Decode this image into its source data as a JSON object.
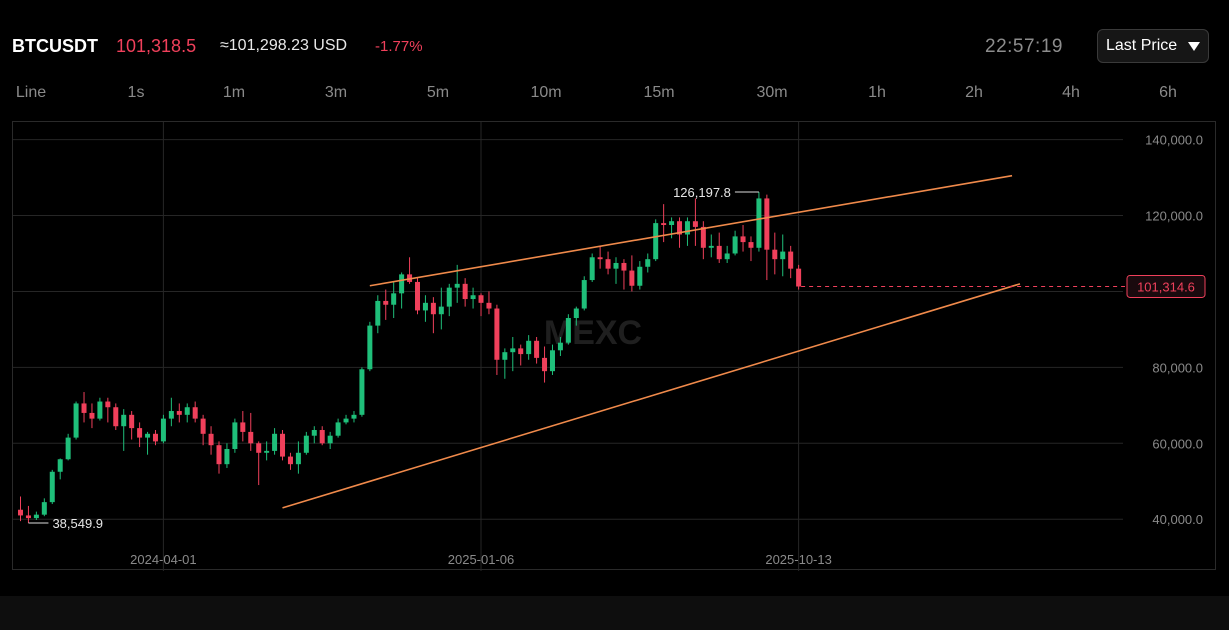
{
  "header": {
    "symbol": "BTCUSDT",
    "price": "101,318.5",
    "usd": "≈101,298.23 USD",
    "change": "-1.77%",
    "time": "22:57:19",
    "price_type": "Last Price"
  },
  "intervals": [
    "Line",
    "1s",
    "1m",
    "3m",
    "5m",
    "10m",
    "15m",
    "30m",
    "1h",
    "2h",
    "4h",
    "6h"
  ],
  "watermark": "MEXC",
  "colors": {
    "up": "#1fbf7a",
    "down": "#f0405b",
    "trendline": "#f08a4b",
    "grid": "#262626"
  },
  "chart_data": {
    "type": "candlestick",
    "x_labels": [
      "2024-04-01",
      "2025-01-06",
      "2025-10-13"
    ],
    "y_ticks": [
      "140,000.0",
      "120,000.0",
      "80,000.0",
      "60,000.0",
      "40,000.0"
    ],
    "y_tick_values": [
      140000,
      120000,
      80000,
      60000,
      40000
    ],
    "ylim": [
      34000,
      142000
    ],
    "x_range_weeks": [
      0,
      151
    ],
    "x_label_weeks": [
      10,
      50,
      90
    ],
    "high_label": "126,197.8",
    "low_label": "38,549.9",
    "current_label": "101,314.6",
    "current_value": 101314.6,
    "trendlines": [
      {
        "name": "",
        "from": [
          36,
          101500
        ],
        "to": [
          99,
          130500
        ]
      },
      {
        "name": "",
        "from": [
          25,
          43000
        ],
        "to": [
          100,
          102000
        ]
      }
    ],
    "candles": [
      [
        42500,
        46000,
        39500,
        41000
      ],
      [
        41000,
        43500,
        39000,
        40300
      ],
      [
        40300,
        42000,
        39800,
        41200
      ],
      [
        41200,
        45500,
        40800,
        44500
      ],
      [
        44500,
        53000,
        44000,
        52500
      ],
      [
        52500,
        56000,
        50500,
        55800
      ],
      [
        55800,
        62500,
        55500,
        61500
      ],
      [
        61500,
        71000,
        61000,
        70500
      ],
      [
        70500,
        73500,
        65500,
        68000
      ],
      [
        68000,
        70500,
        64000,
        66500
      ],
      [
        66500,
        72000,
        66000,
        71000
      ],
      [
        71000,
        72000,
        65500,
        69500
      ],
      [
        69500,
        70500,
        63500,
        64500
      ],
      [
        64500,
        69000,
        58000,
        67500
      ],
      [
        67500,
        68500,
        61000,
        64000
      ],
      [
        64000,
        65500,
        59000,
        61500
      ],
      [
        61500,
        63000,
        57000,
        62500
      ],
      [
        62500,
        63500,
        59500,
        60500
      ],
      [
        60500,
        67500,
        60000,
        66500
      ],
      [
        66500,
        72000,
        64500,
        68500
      ],
      [
        68500,
        70500,
        65500,
        67500
      ],
      [
        67500,
        70500,
        65500,
        69500
      ],
      [
        69500,
        71000,
        65500,
        66500
      ],
      [
        66500,
        67500,
        59500,
        62500
      ],
      [
        62500,
        64500,
        57000,
        59500
      ],
      [
        59500,
        60500,
        52000,
        54500
      ],
      [
        54500,
        60000,
        53500,
        58500
      ],
      [
        58500,
        66500,
        57500,
        65500
      ],
      [
        65500,
        68500,
        60500,
        63000
      ],
      [
        63000,
        68000,
        58000,
        60000
      ],
      [
        60000,
        60500,
        49000,
        57500
      ],
      [
        57500,
        60500,
        55500,
        58000
      ],
      [
        58000,
        64000,
        57000,
        62500
      ],
      [
        62500,
        63500,
        55500,
        56500
      ],
      [
        56500,
        57500,
        53000,
        54500
      ],
      [
        54500,
        60500,
        52000,
        57500
      ],
      [
        57500,
        63000,
        57000,
        62000
      ],
      [
        62000,
        64500,
        60000,
        63500
      ],
      [
        63500,
        64500,
        59500,
        60000
      ],
      [
        60000,
        63000,
        58500,
        62000
      ],
      [
        62000,
        66500,
        61500,
        65500
      ],
      [
        65500,
        67500,
        65000,
        66500
      ],
      [
        66500,
        68500,
        65500,
        67500
      ],
      [
        67500,
        80000,
        67000,
        79500
      ],
      [
        79500,
        92000,
        79000,
        91000
      ],
      [
        91000,
        99000,
        89000,
        97500
      ],
      [
        97500,
        100500,
        92500,
        96500
      ],
      [
        96500,
        102500,
        93000,
        99500
      ],
      [
        99500,
        105000,
        95500,
        104500
      ],
      [
        104500,
        109000,
        102000,
        102500
      ],
      [
        102500,
        103500,
        94000,
        95000
      ],
      [
        95000,
        99000,
        92000,
        97000
      ],
      [
        97000,
        98500,
        89000,
        94000
      ],
      [
        94000,
        101000,
        90000,
        96000
      ],
      [
        96000,
        102000,
        93500,
        101000
      ],
      [
        101000,
        107000,
        97000,
        102000
      ],
      [
        102000,
        103500,
        96000,
        98000
      ],
      [
        98000,
        101000,
        95500,
        99000
      ],
      [
        99000,
        99500,
        93500,
        97000
      ],
      [
        97000,
        100000,
        94000,
        95500
      ],
      [
        95500,
        96500,
        78000,
        82000
      ],
      [
        82000,
        85000,
        77000,
        84000
      ],
      [
        84000,
        88000,
        79000,
        85000
      ],
      [
        85000,
        86000,
        80500,
        83500
      ],
      [
        83500,
        88500,
        82000,
        87000
      ],
      [
        87000,
        88000,
        81000,
        82500
      ],
      [
        82500,
        85500,
        76000,
        79000
      ],
      [
        79000,
        86000,
        78000,
        84500
      ],
      [
        84500,
        88000,
        83000,
        86500
      ],
      [
        86500,
        94000,
        86000,
        93000
      ],
      [
        93000,
        96000,
        91000,
        95500
      ],
      [
        95500,
        104000,
        95000,
        103000
      ],
      [
        103000,
        110000,
        102500,
        109000
      ],
      [
        109000,
        112000,
        106000,
        108500
      ],
      [
        108500,
        110500,
        104500,
        106000
      ],
      [
        106000,
        109000,
        102000,
        107500
      ],
      [
        107500,
        108500,
        100500,
        105500
      ],
      [
        105500,
        109500,
        100000,
        101500
      ],
      [
        101500,
        108000,
        100500,
        106500
      ],
      [
        106500,
        110000,
        105000,
        108500
      ],
      [
        108500,
        119000,
        108000,
        118000
      ],
      [
        118000,
        123000,
        113000,
        117500
      ],
      [
        117500,
        119500,
        114000,
        118500
      ],
      [
        118500,
        119500,
        111500,
        115000
      ],
      [
        115000,
        119500,
        112000,
        118500
      ],
      [
        118500,
        124500,
        112000,
        117000
      ],
      [
        117000,
        118500,
        108500,
        111500
      ],
      [
        111500,
        115000,
        109000,
        112000
      ],
      [
        112000,
        115500,
        107500,
        108500
      ],
      [
        108500,
        112000,
        107500,
        110000
      ],
      [
        110000,
        116000,
        109500,
        114500
      ],
      [
        114500,
        117500,
        110500,
        113000
      ],
      [
        113000,
        114500,
        108000,
        111500
      ],
      [
        111500,
        126200,
        110500,
        124500
      ],
      [
        124500,
        125500,
        103000,
        111000
      ],
      [
        111000,
        115500,
        104500,
        108500
      ],
      [
        108500,
        115000,
        104000,
        110500
      ],
      [
        110500,
        112000,
        103500,
        106000
      ],
      [
        106000,
        107000,
        100500,
        101300
      ]
    ]
  }
}
